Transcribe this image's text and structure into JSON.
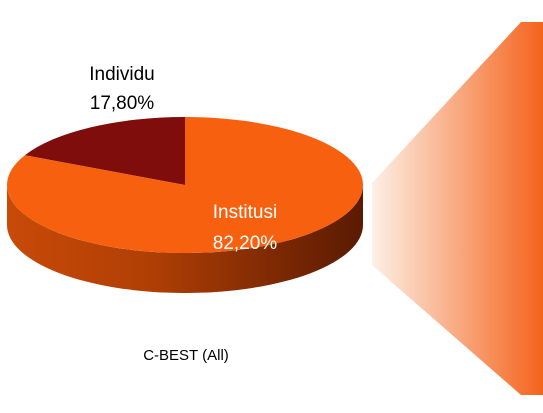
{
  "chart_data": {
    "type": "pie3d",
    "title": "C-BEST (All)",
    "categories": [
      "Individu",
      "Institusi"
    ],
    "values": [
      17.8,
      82.2
    ],
    "value_labels": [
      "17,80%",
      "82,20%"
    ],
    "colors": [
      "#7f0d0b",
      "#f6600f"
    ]
  }
}
